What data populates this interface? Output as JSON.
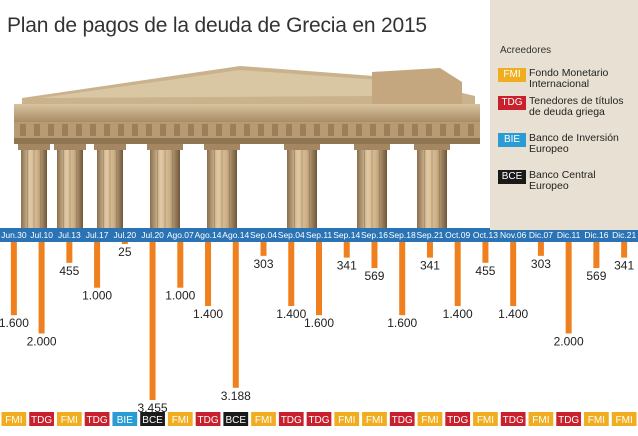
{
  "header": {
    "title": "Plan de pagos de la deuda de Grecia en 2015"
  },
  "legend": {
    "title": "Acreedores",
    "items": [
      {
        "code": "FMI",
        "label": "Fondo Monetario Internacional",
        "color": "#f0ad1f"
      },
      {
        "code": "TDG",
        "label": "Tenedores de títulos de deuda griega",
        "color": "#c8202c"
      },
      {
        "code": "BIE",
        "label": "Banco de Inversión Europeo",
        "color": "#2a9bd3"
      },
      {
        "code": "BCE",
        "label": "Banco Central Europeo",
        "color": "#1a1a1a"
      }
    ]
  },
  "colors": {
    "bar": "#f07f1e",
    "axis_band": "#2a73b5",
    "legend_bg": "#e8e1d3",
    "sky": "#ffffff"
  },
  "chart_data": {
    "type": "bar",
    "orientation": "downward",
    "categories": [
      "Jun.30",
      "Jul.10",
      "Jul.13",
      "Jul.17",
      "Jul.20",
      "Jul.20",
      "Ago.07",
      "Ago.14",
      "Ago.14",
      "Sep.04",
      "Sep.04",
      "Sep.11",
      "Sep.14",
      "Sep.16",
      "Sep.18",
      "Sep.21",
      "Oct.09",
      "Oct.13",
      "Nov.06",
      "Dic.07",
      "Dic.11",
      "Dic.16",
      "Dic.21"
    ],
    "values": [
      1600,
      2000,
      455,
      1000,
      25,
      3455,
      1000,
      1400,
      3188,
      303,
      1400,
      1600,
      341,
      569,
      1600,
      341,
      1400,
      455,
      1400,
      303,
      2000,
      569,
      341
    ],
    "value_labels": [
      "1.600",
      "2.000",
      "455",
      "1.000",
      "25",
      "3.455",
      "1.000",
      "1.400",
      "3.188",
      "303",
      "1.400",
      "1.600",
      "341",
      "569",
      "1.600",
      "341",
      "1.400",
      "455",
      "1.400",
      "303",
      "2.000",
      "569",
      "341"
    ],
    "creditors": [
      "FMI",
      "TDG",
      "FMI",
      "TDG",
      "BIE",
      "BCE",
      "FMI",
      "TDG",
      "BCE",
      "FMI",
      "TDG",
      "TDG",
      "FMI",
      "FMI",
      "TDG",
      "FMI",
      "TDG",
      "FMI",
      "TDG",
      "FMI",
      "TDG",
      "FMI",
      "FMI"
    ]
  }
}
